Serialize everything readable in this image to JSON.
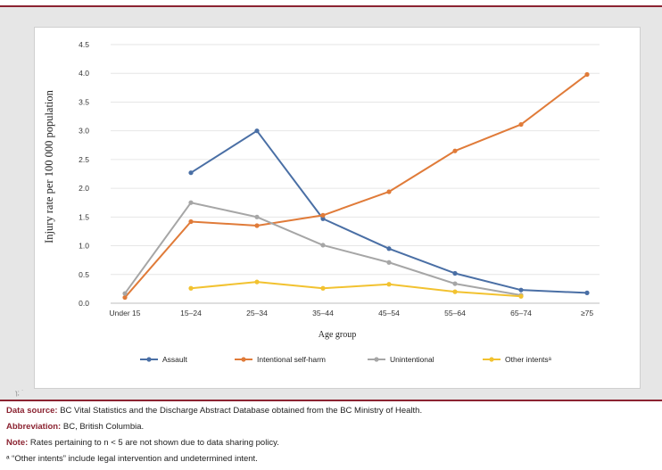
{
  "chart_data": {
    "type": "line",
    "title": "",
    "xlabel": "Age group",
    "ylabel": "Injury rate per 100 000 population",
    "categories": [
      "Under 15",
      "15–24",
      "25–34",
      "35–44",
      "45–54",
      "55–64",
      "65–74",
      "≥75"
    ],
    "ylim": [
      0,
      4.5
    ],
    "yticks": [
      "0.0",
      "0.5",
      "1.0",
      "1.5",
      "2.0",
      "2.5",
      "3.0",
      "3.5",
      "4.0",
      "4.5"
    ],
    "grid": true,
    "legend": "bottom",
    "series": [
      {
        "name": "Assault",
        "color": "#4a6fa5",
        "values": [
          null,
          2.27,
          3.0,
          1.47,
          0.95,
          0.52,
          0.23,
          0.18
        ]
      },
      {
        "name": "Intentional self-harm",
        "color": "#e07b39",
        "values": [
          0.1,
          1.42,
          1.35,
          1.53,
          1.94,
          2.65,
          3.11,
          3.98
        ]
      },
      {
        "name": "Unintentional",
        "color": "#a6a6a6",
        "values": [
          0.17,
          1.75,
          1.5,
          1.01,
          0.71,
          0.34,
          0.14,
          null
        ]
      },
      {
        "name": "Other intentsᵃ",
        "color": "#f2c230",
        "values": [
          null,
          0.26,
          0.37,
          0.26,
          0.33,
          0.2,
          0.12,
          null
        ]
      }
    ]
  },
  "notes": {
    "source_label": "Data source:",
    "source_text": " BC Vital Statistics and the Discharge Abstract Database obtained from the BC Ministry of Health.",
    "abbrev_label": "Abbreviation:",
    "abbrev_text": " BC, British Columbia.",
    "note_label": "Note:",
    "note_text": " Rates pertaining to n < 5 are not shown due to data sharing policy.",
    "footnote": "ᵃ “Other intents” include legal intervention and undetermined intent."
  }
}
